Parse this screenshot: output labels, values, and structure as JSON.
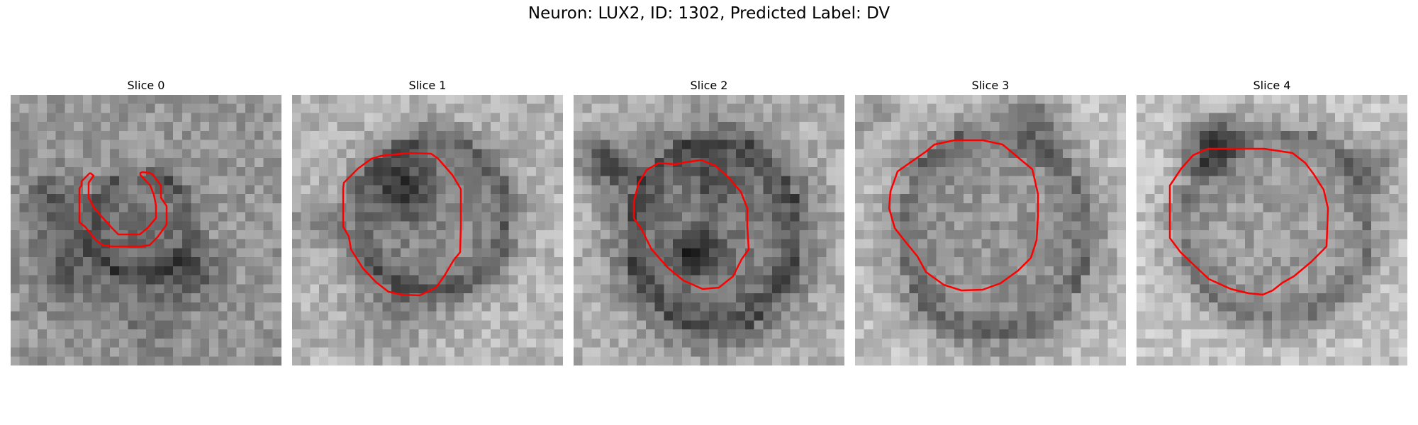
{
  "title": "Neuron: LUX2, ID: 1302, Predicted Label: DV",
  "contour_color": "#ff0000",
  "image_kind": "grayscale microscopy crops",
  "slices": [
    {
      "label": "Slice 0"
    },
    {
      "label": "Slice 1"
    },
    {
      "label": "Slice 2"
    },
    {
      "label": "Slice 3"
    },
    {
      "label": "Slice 4"
    }
  ]
}
